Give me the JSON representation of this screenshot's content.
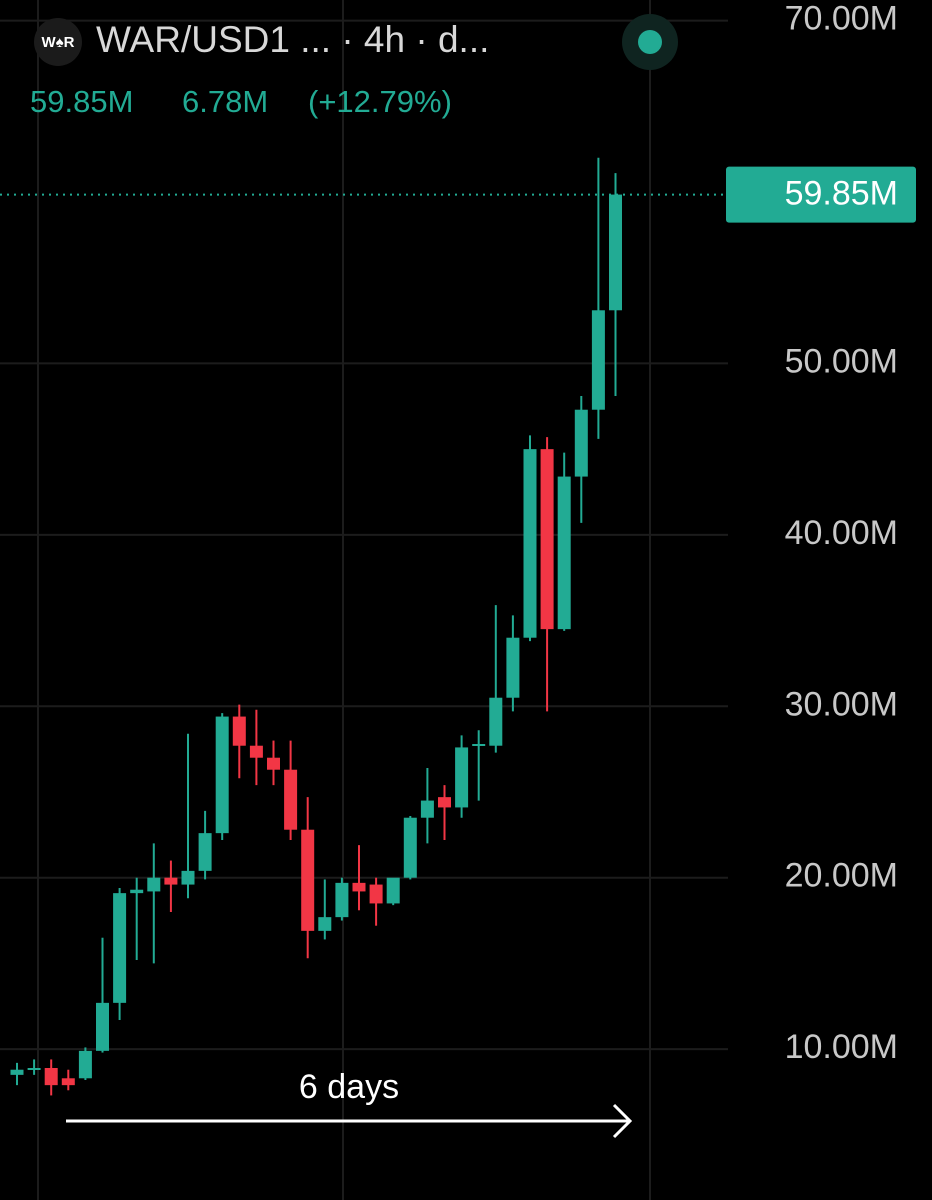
{
  "chart_data": {
    "type": "candlestick",
    "logo": "W♠R",
    "title": "WAR/USD1 ... · 4h · d...",
    "last_value": "59.85M",
    "change": "6.78M",
    "change_percent": "(+12.79%)",
    "annotation": "6 days",
    "up_color": "#22ab94",
    "down_color": "#f23645",
    "open": [
      8.5,
      8.8,
      8.9,
      8.3,
      8.3,
      9.9,
      12.7,
      19.1,
      19.2,
      20.0,
      19.6,
      20.4,
      22.6,
      29.4,
      27.7,
      27.0,
      26.3,
      22.8,
      16.9,
      17.7,
      19.7,
      19.6,
      18.5,
      20.0,
      23.5,
      24.7,
      24.1,
      27.7,
      27.7,
      30.5,
      34.0,
      45.0,
      34.5,
      43.4,
      47.3,
      53.1
    ],
    "high": [
      9.2,
      9.4,
      9.4,
      8.8,
      10.1,
      16.5,
      19.4,
      20.0,
      22.0,
      21.0,
      28.4,
      23.9,
      29.6,
      30.1,
      29.8,
      28.0,
      28.0,
      24.7,
      19.9,
      20.0,
      21.9,
      20.0,
      19.4,
      23.6,
      26.4,
      25.4,
      28.3,
      28.6,
      35.9,
      35.3,
      45.8,
      45.7,
      44.8,
      48.1,
      62.0,
      61.1
    ],
    "low": [
      7.9,
      8.5,
      7.3,
      7.6,
      8.2,
      9.8,
      11.7,
      15.2,
      15.0,
      18.0,
      18.8,
      19.9,
      22.2,
      25.8,
      25.4,
      25.4,
      22.2,
      15.3,
      16.4,
      17.5,
      18.1,
      17.2,
      18.4,
      19.9,
      22.0,
      22.2,
      23.5,
      24.5,
      27.3,
      29.7,
      33.8,
      29.7,
      34.4,
      40.7,
      45.6,
      48.1
    ],
    "close": [
      8.8,
      8.9,
      7.9,
      7.9,
      9.9,
      12.7,
      19.1,
      19.3,
      20.0,
      19.6,
      20.4,
      22.6,
      29.4,
      27.7,
      27.0,
      26.3,
      22.8,
      16.9,
      17.7,
      19.7,
      19.2,
      18.5,
      20.0,
      23.5,
      24.5,
      24.1,
      27.6,
      27.8,
      30.5,
      34.0,
      45.0,
      34.5,
      43.4,
      47.3,
      53.1,
      59.85
    ],
    "ylim": [
      1.2,
      71.2
    ],
    "yticks": [
      {
        "value": 10,
        "label": "10.00M"
      },
      {
        "value": 20,
        "label": "20.00M"
      },
      {
        "value": 30,
        "label": "30.00M"
      },
      {
        "value": 40,
        "label": "40.00M"
      },
      {
        "value": 50,
        "label": "50.00M"
      },
      {
        "value": 70,
        "label": "70.00M"
      }
    ],
    "price_line": {
      "value": 59.85,
      "label": "59.85M"
    },
    "grid": true
  }
}
